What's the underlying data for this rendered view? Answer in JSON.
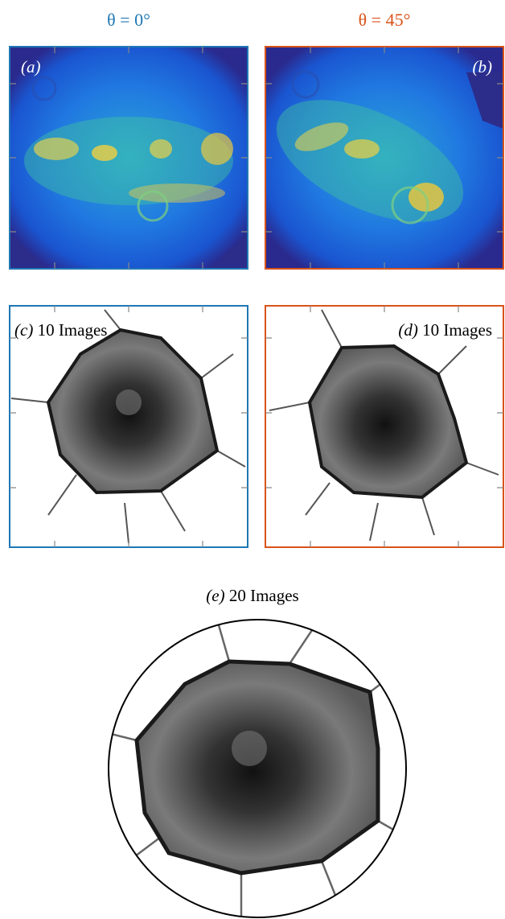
{
  "columns": [
    {
      "title": "θ = 0°",
      "color": "#1f77b4"
    },
    {
      "title": "θ = 45°",
      "color": "#d95319"
    }
  ],
  "panels": [
    {
      "tag": "(a)"
    },
    {
      "tag": "(b)"
    },
    {
      "tag": "(c)",
      "caption": "10 Images"
    },
    {
      "tag": "(d)",
      "caption": "10 Images"
    },
    {
      "tag": "(e)",
      "caption": "20 Images"
    }
  ]
}
